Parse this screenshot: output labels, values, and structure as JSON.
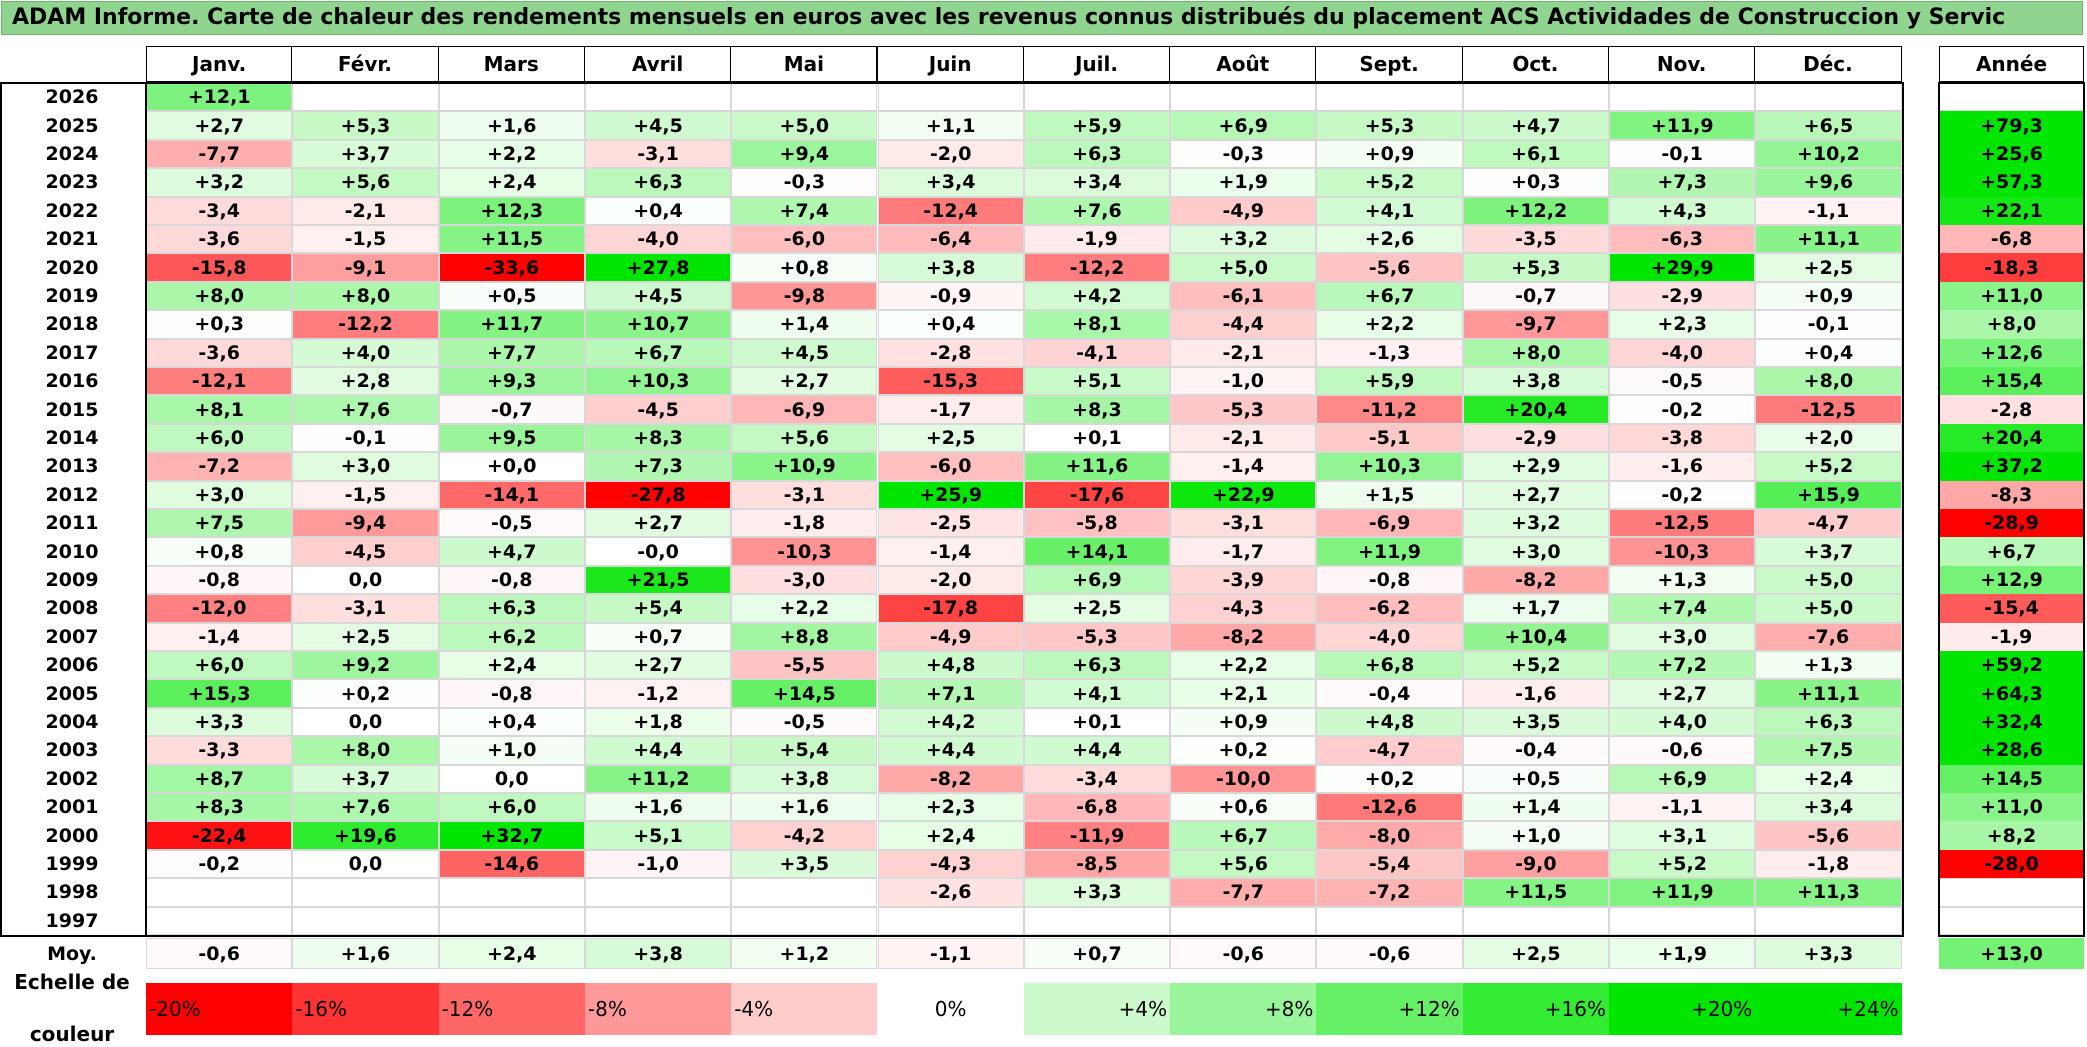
{
  "title": "ADAM Informe. Carte de chaleur des rendements mensuels en euros avec les revenus connus distribués du placement ACS Actividades de Construccion y Servic",
  "chart_data": {
    "type": "heatmap",
    "title": "ADAM Informe. Carte de chaleur des rendements mensuels en euros avec les revenus connus distribués du placement ACS Actividades de Construccion y Servic",
    "columns": [
      "Janv.",
      "Févr.",
      "Mars",
      "Avril",
      "Mai",
      "Juin",
      "Juil.",
      "Août",
      "Sept.",
      "Oct.",
      "Nov.",
      "Déc."
    ],
    "annual_label": "Année",
    "rows": [
      {
        "year": "2026",
        "values": [
          "+12,1",
          "",
          "",
          "",
          "",
          "",
          "",
          "",
          "",
          "",
          "",
          ""
        ],
        "annual": ""
      },
      {
        "year": "2025",
        "values": [
          "+2,7",
          "+5,3",
          "+1,6",
          "+4,5",
          "+5,0",
          "+1,1",
          "+5,9",
          "+6,9",
          "+5,3",
          "+4,7",
          "+11,9",
          "+6,5"
        ],
        "annual": "+79,3"
      },
      {
        "year": "2024",
        "values": [
          "-7,7",
          "+3,7",
          "+2,2",
          "-3,1",
          "+9,4",
          "-2,0",
          "+6,3",
          "-0,3",
          "+0,9",
          "+6,1",
          "-0,1",
          "+10,2"
        ],
        "annual": "+25,6"
      },
      {
        "year": "2023",
        "values": [
          "+3,2",
          "+5,6",
          "+2,4",
          "+6,3",
          "-0,3",
          "+3,4",
          "+3,4",
          "+1,9",
          "+5,2",
          "+0,3",
          "+7,3",
          "+9,6"
        ],
        "annual": "+57,3"
      },
      {
        "year": "2022",
        "values": [
          "-3,4",
          "-2,1",
          "+12,3",
          "+0,4",
          "+7,4",
          "-12,4",
          "+7,6",
          "-4,9",
          "+4,1",
          "+12,2",
          "+4,3",
          "-1,1"
        ],
        "annual": "+22,1"
      },
      {
        "year": "2021",
        "values": [
          "-3,6",
          "-1,5",
          "+11,5",
          "-4,0",
          "-6,0",
          "-6,4",
          "-1,9",
          "+3,2",
          "+2,6",
          "-3,5",
          "-6,3",
          "+11,1"
        ],
        "annual": "-6,8"
      },
      {
        "year": "2020",
        "values": [
          "-15,8",
          "-9,1",
          "-33,6",
          "+27,8",
          "+0,8",
          "+3,8",
          "-12,2",
          "+5,0",
          "-5,6",
          "+5,3",
          "+29,9",
          "+2,5"
        ],
        "annual": "-18,3"
      },
      {
        "year": "2019",
        "values": [
          "+8,0",
          "+8,0",
          "+0,5",
          "+4,5",
          "-9,8",
          "-0,9",
          "+4,2",
          "-6,1",
          "+6,7",
          "-0,7",
          "-2,9",
          "+0,9"
        ],
        "annual": "+11,0"
      },
      {
        "year": "2018",
        "values": [
          "+0,3",
          "-12,2",
          "+11,7",
          "+10,7",
          "+1,4",
          "+0,4",
          "+8,1",
          "-4,4",
          "+2,2",
          "-9,7",
          "+2,3",
          "-0,1"
        ],
        "annual": "+8,0"
      },
      {
        "year": "2017",
        "values": [
          "-3,6",
          "+4,0",
          "+7,7",
          "+6,7",
          "+4,5",
          "-2,8",
          "-4,1",
          "-2,1",
          "-1,3",
          "+8,0",
          "-4,0",
          "+0,4"
        ],
        "annual": "+12,6"
      },
      {
        "year": "2016",
        "values": [
          "-12,1",
          "+2,8",
          "+9,3",
          "+10,3",
          "+2,7",
          "-15,3",
          "+5,1",
          "-1,0",
          "+5,9",
          "+3,8",
          "-0,5",
          "+8,0"
        ],
        "annual": "+15,4"
      },
      {
        "year": "2015",
        "values": [
          "+8,1",
          "+7,6",
          "-0,7",
          "-4,5",
          "-6,9",
          "-1,7",
          "+8,3",
          "-5,3",
          "-11,2",
          "+20,4",
          "-0,2",
          "-12,5"
        ],
        "annual": "-2,8"
      },
      {
        "year": "2014",
        "values": [
          "+6,0",
          "-0,1",
          "+9,5",
          "+8,3",
          "+5,6",
          "+2,5",
          "+0,1",
          "-2,1",
          "-5,1",
          "-2,9",
          "-3,8",
          "+2,0"
        ],
        "annual": "+20,4"
      },
      {
        "year": "2013",
        "values": [
          "-7,2",
          "+3,0",
          "+0,0",
          "+7,3",
          "+10,9",
          "-6,0",
          "+11,6",
          "-1,4",
          "+10,3",
          "+2,9",
          "-1,6",
          "+5,2"
        ],
        "annual": "+37,2"
      },
      {
        "year": "2012",
        "values": [
          "+3,0",
          "-1,5",
          "-14,1",
          "-27,8",
          "-3,1",
          "+25,9",
          "-17,6",
          "+22,9",
          "+1,5",
          "+2,7",
          "-0,2",
          "+15,9"
        ],
        "annual": "-8,3"
      },
      {
        "year": "2011",
        "values": [
          "+7,5",
          "-9,4",
          "-0,5",
          "+2,7",
          "-1,8",
          "-2,5",
          "-5,8",
          "-3,1",
          "-6,9",
          "+3,2",
          "-12,5",
          "-4,7"
        ],
        "annual": "-28,9"
      },
      {
        "year": "2010",
        "values": [
          "+0,8",
          "-4,5",
          "+4,7",
          "-0,0",
          "-10,3",
          "-1,4",
          "+14,1",
          "-1,7",
          "+11,9",
          "+3,0",
          "-10,3",
          "+3,7"
        ],
        "annual": "+6,7"
      },
      {
        "year": "2009",
        "values": [
          "-0,8",
          "0,0",
          "-0,8",
          "+21,5",
          "-3,0",
          "-2,0",
          "+6,9",
          "-3,9",
          "-0,8",
          "-8,2",
          "+1,3",
          "+5,0"
        ],
        "annual": "+12,9"
      },
      {
        "year": "2008",
        "values": [
          "-12,0",
          "-3,1",
          "+6,3",
          "+5,4",
          "+2,2",
          "-17,8",
          "+2,5",
          "-4,3",
          "-6,2",
          "+1,7",
          "+7,4",
          "+5,0"
        ],
        "annual": "-15,4"
      },
      {
        "year": "2007",
        "values": [
          "-1,4",
          "+2,5",
          "+6,2",
          "+0,7",
          "+8,8",
          "-4,9",
          "-5,3",
          "-8,2",
          "-4,0",
          "+10,4",
          "+3,0",
          "-7,6"
        ],
        "annual": "-1,9"
      },
      {
        "year": "2006",
        "values": [
          "+6,0",
          "+9,2",
          "+2,4",
          "+2,7",
          "-5,5",
          "+4,8",
          "+6,3",
          "+2,2",
          "+6,8",
          "+5,2",
          "+7,2",
          "+1,3"
        ],
        "annual": "+59,2"
      },
      {
        "year": "2005",
        "values": [
          "+15,3",
          "+0,2",
          "-0,8",
          "-1,2",
          "+14,5",
          "+7,1",
          "+4,1",
          "+2,1",
          "-0,4",
          "-1,6",
          "+2,7",
          "+11,1"
        ],
        "annual": "+64,3"
      },
      {
        "year": "2004",
        "values": [
          "+3,3",
          "0,0",
          "+0,4",
          "+1,8",
          "-0,5",
          "+4,2",
          "+0,1",
          "+0,9",
          "+4,8",
          "+3,5",
          "+4,0",
          "+6,3"
        ],
        "annual": "+32,4"
      },
      {
        "year": "2003",
        "values": [
          "-3,3",
          "+8,0",
          "+1,0",
          "+4,4",
          "+5,4",
          "+4,4",
          "+4,4",
          "+0,2",
          "-4,7",
          "-0,4",
          "-0,6",
          "+7,5"
        ],
        "annual": "+28,6"
      },
      {
        "year": "2002",
        "values": [
          "+8,7",
          "+3,7",
          "0,0",
          "+11,2",
          "+3,8",
          "-8,2",
          "-3,4",
          "-10,0",
          "+0,2",
          "+0,5",
          "+6,9",
          "+2,4"
        ],
        "annual": "+14,5"
      },
      {
        "year": "2001",
        "values": [
          "+8,3",
          "+7,6",
          "+6,0",
          "+1,6",
          "+1,6",
          "+2,3",
          "-6,8",
          "+0,6",
          "-12,6",
          "+1,4",
          "-1,1",
          "+3,4"
        ],
        "annual": "+11,0"
      },
      {
        "year": "2000",
        "values": [
          "-22,4",
          "+19,6",
          "+32,7",
          "+5,1",
          "-4,2",
          "+2,4",
          "-11,9",
          "+6,7",
          "-8,0",
          "+1,0",
          "+3,1",
          "-5,6"
        ],
        "annual": "+8,2"
      },
      {
        "year": "1999",
        "values": [
          "-0,2",
          "0,0",
          "-14,6",
          "-1,0",
          "+3,5",
          "-4,3",
          "-8,5",
          "+5,6",
          "-5,4",
          "-9,0",
          "+5,2",
          "-1,8"
        ],
        "annual": "-28,0"
      },
      {
        "year": "1998",
        "values": [
          "",
          "",
          "",
          "",
          "",
          "-2,6",
          "+3,3",
          "-7,7",
          "-7,2",
          "+11,5",
          "+11,9",
          "+11,3"
        ],
        "annual": ""
      },
      {
        "year": "1997",
        "values": [
          "",
          "",
          "",
          "",
          "",
          "",
          "",
          "",
          "",
          "",
          "",
          ""
        ],
        "annual": ""
      }
    ],
    "average": {
      "label": "Moy.",
      "values": [
        "-0,6",
        "+1,6",
        "+2,4",
        "+3,8",
        "+1,2",
        "-1,1",
        "+0,7",
        "-0,6",
        "-0,6",
        "+2,5",
        "+1,9",
        "+3,3"
      ],
      "annual": "+13,0"
    },
    "color_scale": {
      "label_line1": "Echelle de",
      "label_line2": "couleur",
      "steps": [
        "-20%",
        "-16%",
        "-12%",
        "-8%",
        "-4%",
        "0%",
        "+4%",
        "+8%",
        "+12%",
        "+16%",
        "+20%",
        "+24%"
      ],
      "negative_color": "#ff0000",
      "positive_color": "#00e600",
      "neutral_color": "#ffffff"
    }
  }
}
